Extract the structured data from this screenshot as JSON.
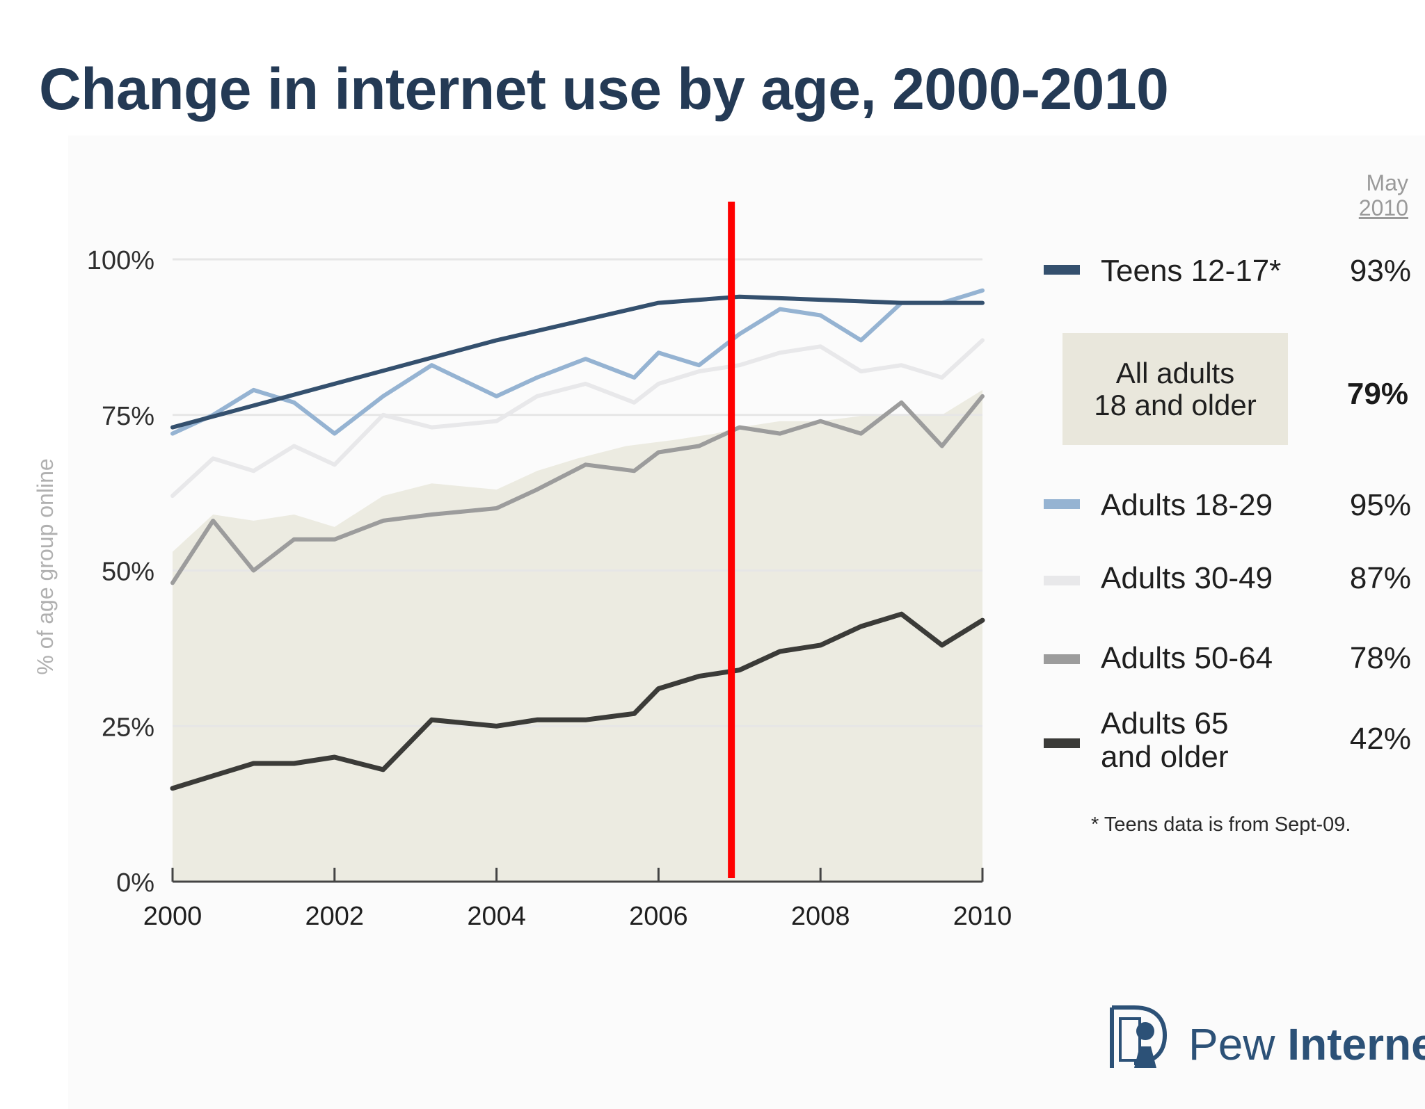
{
  "title": "Change in internet use by age, 2000-2010",
  "legend": {
    "header_line1": "May",
    "header_line2": "2010",
    "teens": {
      "label": "Teens 12-17*",
      "value": "93%"
    },
    "all_adults": {
      "label_line1": "All adults",
      "label_line2": "18 and older",
      "value": "79%"
    },
    "a18_29": {
      "label": "Adults 18-29",
      "value": "95%"
    },
    "a30_49": {
      "label": "Adults 30-49",
      "value": "87%"
    },
    "a50_64": {
      "label": "Adults 50-64",
      "value": "78%"
    },
    "a65": {
      "label_line1": "Adults 65",
      "label_line2": "and older",
      "value": "42%"
    }
  },
  "footnote": "* Teens data is from Sept-09.",
  "logo": {
    "word1": "Pew",
    "word2": "Internet"
  },
  "colors": {
    "title": "#243a55",
    "teens": "#34506e",
    "a18_29": "#95b3d2",
    "a30_49": "#e8e8ea",
    "a50_64": "#9c9c9c",
    "a65": "#3b3b38",
    "all_adults_area": "#ecebe1",
    "marker": "#ff0000"
  },
  "chart_data": {
    "type": "line",
    "title": "Change in internet use by age, 2000-2010",
    "xlabel": "",
    "ylabel": "% of age group online",
    "xlim": [
      2000,
      2010
    ],
    "ylim": [
      0,
      100
    ],
    "xticks": [
      2000,
      2002,
      2004,
      2006,
      2008,
      2010
    ],
    "yticks": [
      0,
      25,
      50,
      75,
      100
    ],
    "ytick_labels": [
      "0%",
      "25%",
      "50%",
      "75%",
      "100%"
    ],
    "vertical_marker_x": 2006.9,
    "area": {
      "name": "All adults 18 and older",
      "points": [
        [
          2000,
          53
        ],
        [
          2000.5,
          59
        ],
        [
          2001,
          58
        ],
        [
          2001.5,
          59
        ],
        [
          2002,
          57
        ],
        [
          2002.6,
          62
        ],
        [
          2003.2,
          64
        ],
        [
          2004,
          63
        ],
        [
          2004.5,
          66
        ],
        [
          2005,
          68
        ],
        [
          2005.6,
          70
        ],
        [
          2006.2,
          71
        ],
        [
          2006.7,
          72
        ],
        [
          2007,
          73
        ],
        [
          2007.5,
          74
        ],
        [
          2008,
          74
        ],
        [
          2008.6,
          75
        ],
        [
          2009,
          75
        ],
        [
          2009.5,
          75
        ],
        [
          2010,
          79
        ]
      ]
    },
    "series": [
      {
        "name": "Teens 12-17*",
        "key": "teens",
        "points": [
          [
            2000,
            73
          ],
          [
            2004,
            87
          ],
          [
            2006,
            93
          ],
          [
            2007,
            94
          ],
          [
            2009,
            93
          ],
          [
            2010,
            93
          ]
        ]
      },
      {
        "name": "Adults 18-29",
        "key": "a18_29",
        "points": [
          [
            2000,
            72
          ],
          [
            2000.5,
            75
          ],
          [
            2001,
            79
          ],
          [
            2001.5,
            77
          ],
          [
            2002,
            72
          ],
          [
            2002.6,
            78
          ],
          [
            2003.2,
            83
          ],
          [
            2004,
            78
          ],
          [
            2004.5,
            81
          ],
          [
            2005.1,
            84
          ],
          [
            2005.7,
            81
          ],
          [
            2006,
            85
          ],
          [
            2006.5,
            83
          ],
          [
            2007,
            88
          ],
          [
            2007.5,
            92
          ],
          [
            2008,
            91
          ],
          [
            2008.5,
            87
          ],
          [
            2009,
            93
          ],
          [
            2009.5,
            93
          ],
          [
            2010,
            95
          ]
        ]
      },
      {
        "name": "Adults 30-49",
        "key": "a30_49",
        "points": [
          [
            2000,
            62
          ],
          [
            2000.5,
            68
          ],
          [
            2001,
            66
          ],
          [
            2001.5,
            70
          ],
          [
            2002,
            67
          ],
          [
            2002.6,
            75
          ],
          [
            2003.2,
            73
          ],
          [
            2004,
            74
          ],
          [
            2004.5,
            78
          ],
          [
            2005.1,
            80
          ],
          [
            2005.7,
            77
          ],
          [
            2006,
            80
          ],
          [
            2006.5,
            82
          ],
          [
            2007,
            83
          ],
          [
            2007.5,
            85
          ],
          [
            2008,
            86
          ],
          [
            2008.5,
            82
          ],
          [
            2009,
            83
          ],
          [
            2009.5,
            81
          ],
          [
            2010,
            87
          ]
        ]
      },
      {
        "name": "Adults 50-64",
        "key": "a50_64",
        "points": [
          [
            2000,
            48
          ],
          [
            2000.5,
            58
          ],
          [
            2001,
            50
          ],
          [
            2001.5,
            55
          ],
          [
            2002,
            55
          ],
          [
            2002.6,
            58
          ],
          [
            2003.2,
            59
          ],
          [
            2004,
            60
          ],
          [
            2004.5,
            63
          ],
          [
            2005.1,
            67
          ],
          [
            2005.7,
            66
          ],
          [
            2006,
            69
          ],
          [
            2006.5,
            70
          ],
          [
            2007,
            73
          ],
          [
            2007.5,
            72
          ],
          [
            2008,
            74
          ],
          [
            2008.5,
            72
          ],
          [
            2009,
            77
          ],
          [
            2009.5,
            70
          ],
          [
            2010,
            78
          ]
        ]
      },
      {
        "name": "Adults 65 and older",
        "key": "a65",
        "points": [
          [
            2000,
            15
          ],
          [
            2000.5,
            17
          ],
          [
            2001,
            19
          ],
          [
            2001.5,
            19
          ],
          [
            2002,
            20
          ],
          [
            2002.6,
            18
          ],
          [
            2003.2,
            26
          ],
          [
            2004,
            25
          ],
          [
            2004.5,
            26
          ],
          [
            2005.1,
            26
          ],
          [
            2005.7,
            27
          ],
          [
            2006,
            31
          ],
          [
            2006.5,
            33
          ],
          [
            2007,
            34
          ],
          [
            2007.5,
            37
          ],
          [
            2008,
            38
          ],
          [
            2008.5,
            41
          ],
          [
            2009,
            43
          ],
          [
            2009.5,
            38
          ],
          [
            2010,
            42
          ]
        ]
      }
    ]
  }
}
